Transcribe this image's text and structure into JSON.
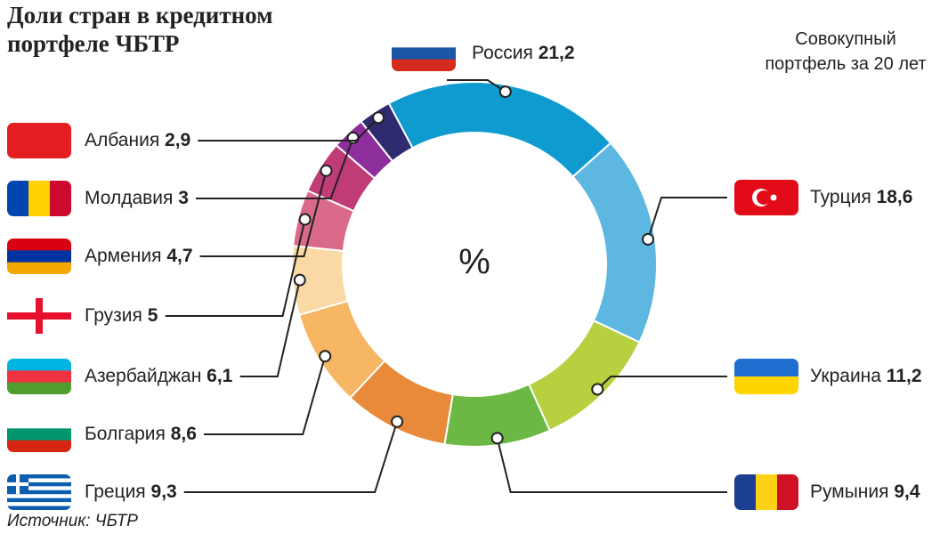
{
  "chart_data": {
    "type": "donut",
    "title": "Доли стран в кредитном портфеле ЧБТР",
    "subtitle": "Совокупный портфель за 20 лет",
    "center_label": "%",
    "source": "Источник: ЧБТР",
    "categories": [
      "Россия",
      "Турция",
      "Украина",
      "Румыния",
      "Греция",
      "Болгария",
      "Азербайджан",
      "Грузия",
      "Армения",
      "Молдавия",
      "Албания"
    ],
    "values": [
      21.2,
      18.6,
      11.2,
      9.4,
      9.3,
      8.6,
      6.1,
      5,
      4.7,
      3,
      2.9
    ],
    "value_labels": [
      "21,2",
      "18,6",
      "11,2",
      "9,4",
      "9,3",
      "8,6",
      "6,1",
      "5",
      "4,7",
      "3",
      "2,9"
    ],
    "colors": [
      "#0f9bd0",
      "#5db7e1",
      "#b6d03f",
      "#6cb845",
      "#e88a3a",
      "#f6b663",
      "#fbd9a5",
      "#da6a8a",
      "#c03c76",
      "#8e2e9c",
      "#2e2b6f"
    ]
  }
}
